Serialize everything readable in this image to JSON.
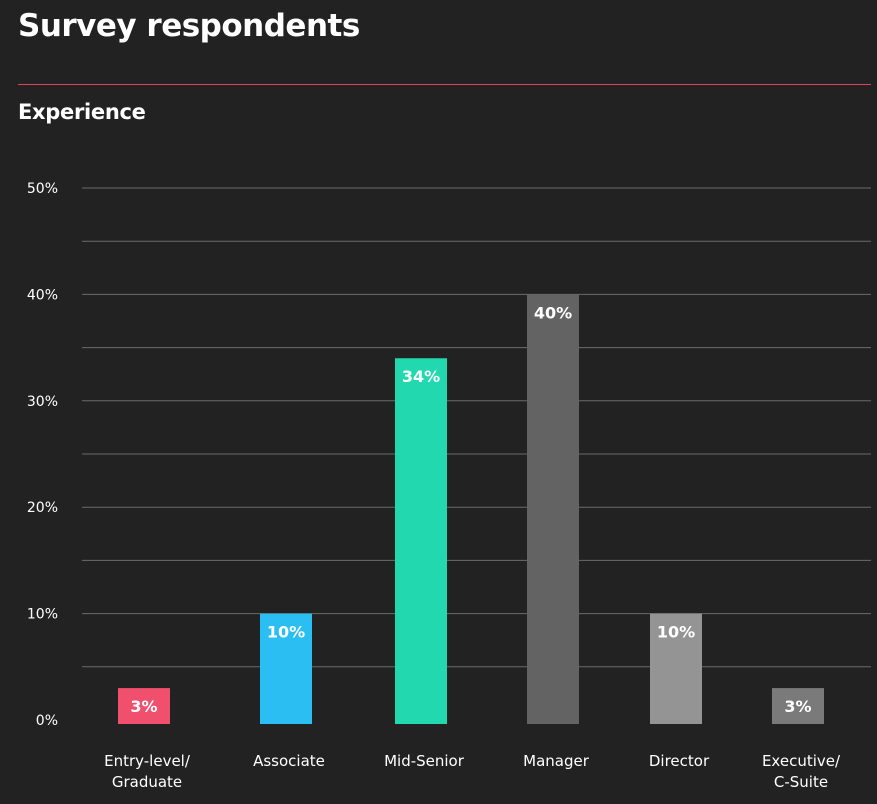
{
  "header": {
    "title": "Survey respondents",
    "subtitle": "Experience"
  },
  "chart_data": {
    "type": "bar",
    "categories": [
      [
        "Entry-level/",
        "Graduate"
      ],
      [
        "Associate"
      ],
      [
        "Mid-Senior"
      ],
      [
        "Manager"
      ],
      [
        "Director"
      ],
      [
        "Executive/",
        "C-Suite"
      ]
    ],
    "values": [
      3,
      10,
      34,
      40,
      10,
      3
    ],
    "value_labels": [
      "3%",
      "10%",
      "34%",
      "40%",
      "10%",
      "3%"
    ],
    "colors": [
      "#f0506e",
      "#2bbef2",
      "#22d8af",
      "#636363",
      "#949494",
      "#7a7a7a"
    ],
    "ylim": [
      0,
      50
    ],
    "yticks": [
      0,
      10,
      20,
      30,
      40,
      50
    ],
    "ytick_labels": [
      "0%",
      "10%",
      "20%",
      "30%",
      "40%",
      "50%"
    ],
    "grid": true,
    "grid_color": "#6b6b6b",
    "accent_color": "#e0435e",
    "background_color": "#222223"
  }
}
